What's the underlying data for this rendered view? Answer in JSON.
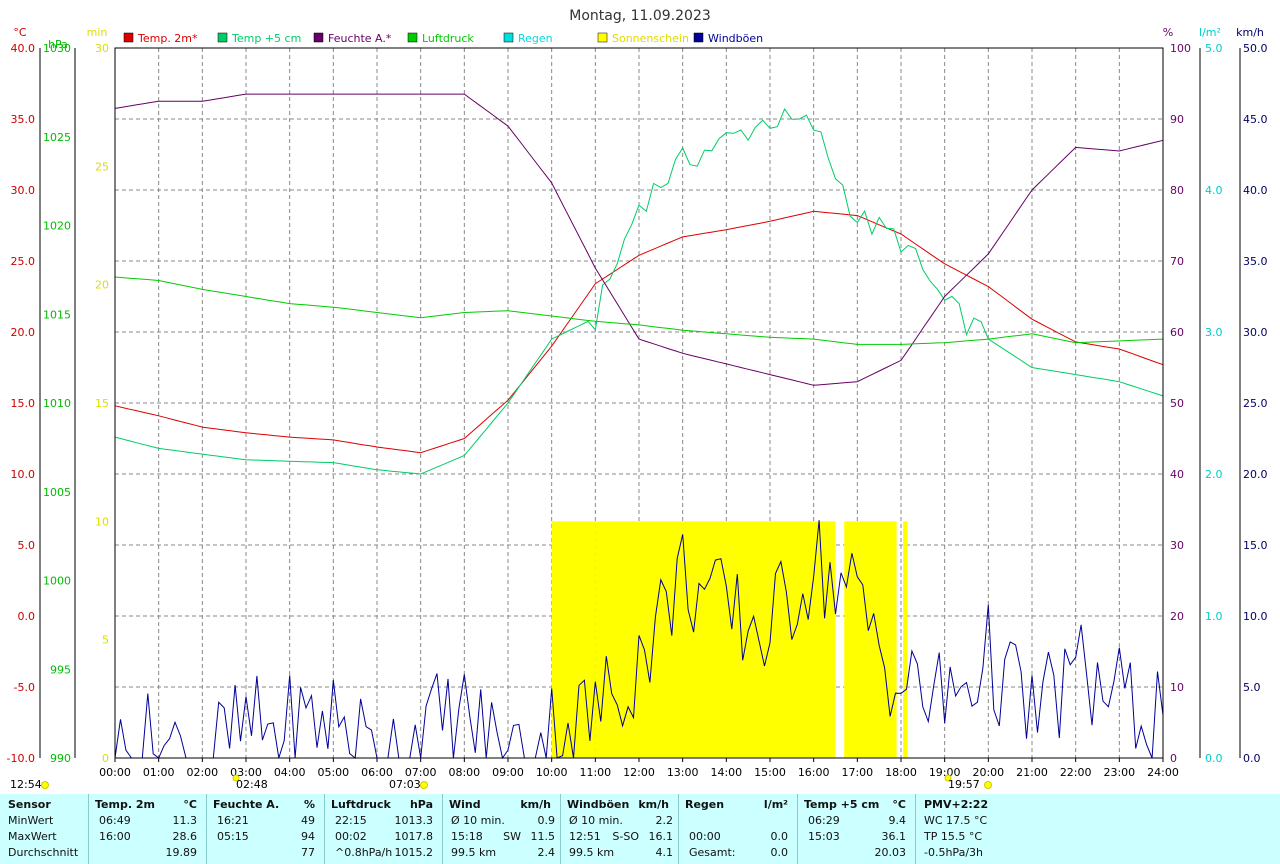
{
  "title": "Montag, 11.09.2023",
  "axes": {
    "temp": {
      "unit": "°C",
      "ticks": [
        "40.0",
        "35.0",
        "30.0",
        "25.0",
        "20.0",
        "15.0",
        "10.0",
        "5.0",
        "0.0",
        "-5.0",
        "-10.0"
      ],
      "color": "#cc0000"
    },
    "pressure": {
      "unit": "hPa",
      "ticks": [
        "1030",
        "1025",
        "1020",
        "1015",
        "1010",
        "1005",
        "1000",
        "995",
        "990"
      ],
      "color": "#00bb00"
    },
    "sun": {
      "unit": "min",
      "ticks": [
        "30",
        "25",
        "20",
        "15",
        "10",
        "5",
        "0"
      ],
      "color": "#dddd00"
    },
    "humidity": {
      "unit": "%",
      "ticks": [
        "100",
        "90",
        "80",
        "70",
        "60",
        "50",
        "40",
        "30",
        "20",
        "10",
        "0"
      ],
      "color": "#660066"
    },
    "rain": {
      "unit": "l/m²",
      "ticks": [
        "5.0",
        "4.0",
        "3.0",
        "2.0",
        "1.0",
        "0.0"
      ],
      "color": "#00cccc"
    },
    "wind": {
      "unit": "km/h",
      "ticks": [
        "50.0",
        "45.0",
        "40.0",
        "35.0",
        "30.0",
        "25.0",
        "20.0",
        "15.0",
        "10.0",
        "5.0",
        "0.0"
      ],
      "color": "#000066"
    }
  },
  "x_ticks": [
    "00:00",
    "01:00",
    "02:00",
    "03:00",
    "04:00",
    "05:00",
    "06:00",
    "07:00",
    "08:00",
    "09:00",
    "10:00",
    "11:00",
    "12:00",
    "13:00",
    "14:00",
    "15:00",
    "16:00",
    "17:00",
    "18:00",
    "19:00",
    "20:00",
    "21:00",
    "22:00",
    "23:00",
    "24:00"
  ],
  "markers": {
    "left_time": "12:54",
    "moonset": "02:48",
    "sunrise": "07:03",
    "sunset": "19:57"
  },
  "legend": [
    {
      "label": "Temp. 2m*",
      "color": "#dd0000"
    },
    {
      "label": "Temp +5 cm",
      "color": "#00cc66"
    },
    {
      "label": "Feuchte A.*",
      "color": "#660066"
    },
    {
      "label": "Luftdruck",
      "color": "#00cc00"
    },
    {
      "label": "Regen",
      "color": "#00dddd"
    },
    {
      "label": "Sonnenschein",
      "color": "#ffff00"
    },
    {
      "label": "Windböen",
      "color": "#000099"
    }
  ],
  "chart_data": {
    "type": "line",
    "x": [
      0,
      1,
      2,
      3,
      4,
      5,
      6,
      7,
      8,
      9,
      10,
      11,
      12,
      13,
      14,
      15,
      16,
      17,
      18,
      19,
      20,
      21,
      22,
      23,
      24
    ],
    "xlabel": "",
    "series": [
      {
        "name": "Temp. 2m*",
        "axis": "temp",
        "color": "#dd0000",
        "values": [
          14.8,
          14.1,
          13.3,
          12.9,
          12.6,
          12.4,
          11.9,
          11.5,
          12.5,
          15.2,
          19.0,
          23.4,
          25.4,
          26.7,
          27.2,
          27.8,
          28.5,
          28.2,
          26.9,
          24.8,
          23.2,
          20.9,
          19.3,
          18.8,
          17.7
        ]
      },
      {
        "name": "Temp +5 cm",
        "axis": "temp",
        "color": "#00cc66",
        "values": [
          12.6,
          11.8,
          11.4,
          11.0,
          10.9,
          10.8,
          10.3,
          10.0,
          11.3,
          15.0,
          19.5,
          21.0,
          29.0,
          32.0,
          33.5,
          35.0,
          34.5,
          28.0,
          26.5,
          22.0,
          19.5,
          17.5,
          17.0,
          16.5,
          15.5
        ]
      },
      {
        "name": "Feuchte A.*",
        "axis": "humidity",
        "color": "#660066",
        "values": [
          91.5,
          92.5,
          92.5,
          93.5,
          93.5,
          93.5,
          93.5,
          93.5,
          93.5,
          89.0,
          81.0,
          69.0,
          59.0,
          57.0,
          55.5,
          54.0,
          52.5,
          53.0,
          56.0,
          65.0,
          71.0,
          80.0,
          86.0,
          85.5,
          87.0
        ]
      },
      {
        "name": "Luftdruck",
        "axis": "pressure",
        "color": "#00cc00",
        "values": [
          1017.1,
          1016.9,
          1016.4,
          1016.0,
          1015.6,
          1015.4,
          1015.1,
          1014.8,
          1015.1,
          1015.2,
          1014.9,
          1014.6,
          1014.4,
          1014.1,
          1013.9,
          1013.7,
          1013.6,
          1013.3,
          1013.3,
          1013.4,
          1013.6,
          1013.9,
          1013.4,
          1013.5,
          1013.6
        ]
      },
      {
        "name": "Windböen",
        "axis": "wind",
        "color": "#000099",
        "values": [
          0,
          1,
          0,
          2,
          2,
          3,
          0,
          2,
          3,
          0,
          2,
          3,
          7,
          13,
          10,
          9,
          14,
          11,
          5,
          4,
          7,
          3,
          6,
          4,
          3
        ]
      }
    ],
    "sunshine": {
      "axis": "sun",
      "color": "#ffff00",
      "unit": "min",
      "blocks": [
        [
          10.0,
          11.0,
          10
        ],
        [
          11.0,
          15.0,
          10
        ],
        [
          15.0,
          16.5,
          10
        ],
        [
          16.7,
          17.9,
          10
        ],
        [
          18.05,
          18.15,
          10
        ]
      ]
    },
    "x_range": [
      0,
      24
    ]
  },
  "summary": [
    {
      "name": "sensor",
      "header": [
        "Sensor"
      ],
      "rows": [
        [
          "MinWert"
        ],
        [
          "MaxWert"
        ],
        [
          "Durchschnitt"
        ]
      ]
    },
    {
      "name": "temp2m",
      "header": [
        "Temp. 2m",
        "°C"
      ],
      "rows": [
        [
          "06:49",
          "11.3"
        ],
        [
          "16:00",
          "28.6"
        ],
        [
          "",
          "19.89"
        ]
      ]
    },
    {
      "name": "feuchte",
      "header": [
        "Feuchte A.",
        "%"
      ],
      "rows": [
        [
          "16:21",
          "49"
        ],
        [
          "05:15",
          "94"
        ],
        [
          "",
          "77"
        ]
      ]
    },
    {
      "name": "luftdruck",
      "header": [
        "Luftdruck",
        "hPa"
      ],
      "rows": [
        [
          "22:15",
          "1013.3"
        ],
        [
          "00:02",
          "1017.8"
        ],
        [
          "^0.8hPa/h",
          "1015.2"
        ]
      ]
    },
    {
      "name": "wind",
      "header": [
        "Wind",
        "km/h"
      ],
      "rows": [
        [
          "Ø 10 min.",
          "",
          "0.9"
        ],
        [
          "15:18",
          "SW",
          "11.5"
        ],
        [
          "99.5 km",
          "",
          "2.4"
        ]
      ]
    },
    {
      "name": "windboeen",
      "header": [
        "Windböen",
        "km/h"
      ],
      "rows": [
        [
          "Ø 10 min.",
          "",
          "2.2"
        ],
        [
          "12:51",
          "S-SO",
          "16.1"
        ],
        [
          "99.5 km",
          "",
          "4.1"
        ]
      ]
    },
    {
      "name": "regen",
      "header": [
        "Regen",
        "l/m²"
      ],
      "rows": [
        [
          "",
          ""
        ],
        [
          "00:00",
          "0.0"
        ],
        [
          "Gesamt:",
          "0.0"
        ]
      ]
    },
    {
      "name": "temp5cm",
      "header": [
        "Temp +5 cm",
        "°C"
      ],
      "rows": [
        [
          "06:29",
          "9.4"
        ],
        [
          "15:03",
          "36.1"
        ],
        [
          "",
          "20.03"
        ]
      ]
    },
    {
      "name": "pmv",
      "header": [
        "PMV+2:22"
      ],
      "rows": [
        [
          "WC 17.5 °C"
        ],
        [
          "TP 15.5 °C"
        ],
        [
          "-0.5hPa/3h"
        ]
      ]
    }
  ]
}
